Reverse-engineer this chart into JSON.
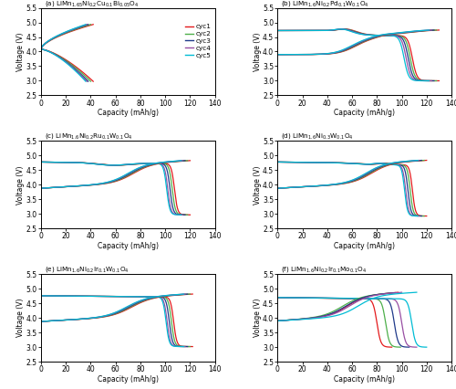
{
  "panels": [
    {
      "label": "(a)",
      "title_parts": [
        "(a) LiMn",
        "1.65",
        "Ni",
        "0.2",
        "Cu",
        "0.1",
        "Bi",
        "0.05",
        "O",
        "4"
      ],
      "title_text": "(a) LiMn$_{1.65}$Ni$_{0.2}$Cu$_{0.1}$Bi$_{0.05}$O$_4$",
      "xlim": [
        0,
        140
      ],
      "ylim": [
        2.5,
        5.5
      ],
      "yticks": [
        2.5,
        3.0,
        3.5,
        4.0,
        4.5,
        5.0,
        5.5
      ],
      "xticks": [
        0,
        20,
        40,
        60,
        80,
        100,
        120,
        140
      ],
      "show_legend": true,
      "curve_type": "a"
    },
    {
      "label": "(b)",
      "title_text": "(b) LiMn$_{1.6}$Ni$_{0.2}$Pd$_{0.1}$W$_{0.1}$O$_4$",
      "xlim": [
        0,
        140
      ],
      "ylim": [
        2.5,
        5.5
      ],
      "yticks": [
        2.5,
        3.0,
        3.5,
        4.0,
        4.5,
        5.0,
        5.5
      ],
      "xticks": [
        0,
        20,
        40,
        60,
        80,
        100,
        120,
        140
      ],
      "show_legend": false,
      "curve_type": "b"
    },
    {
      "label": "(c)",
      "title_text": "(c) LiMn$_{1.6}$Ni$_{0.2}$Ru$_{0.1}$W$_{0.1}$O$_4$",
      "xlim": [
        0,
        140
      ],
      "ylim": [
        2.5,
        5.5
      ],
      "yticks": [
        2.5,
        3.0,
        3.5,
        4.0,
        4.5,
        5.0,
        5.5
      ],
      "xticks": [
        0,
        20,
        40,
        60,
        80,
        100,
        120,
        140
      ],
      "show_legend": false,
      "curve_type": "c"
    },
    {
      "label": "(d)",
      "title_text": "(d) LiMn$_{1.6}$Ni$_{0.3}$W$_{0.1}$O$_4$",
      "xlim": [
        0,
        140
      ],
      "ylim": [
        2.5,
        5.5
      ],
      "yticks": [
        2.5,
        3.0,
        3.5,
        4.0,
        4.5,
        5.0,
        5.5
      ],
      "xticks": [
        0,
        20,
        40,
        60,
        80,
        100,
        120,
        140
      ],
      "show_legend": false,
      "curve_type": "d"
    },
    {
      "label": "(e)",
      "title_text": "(e) LiMn$_{1.6}$Ni$_{0.2}$Ir$_{0.1}$W$_{0.1}$O$_4$",
      "xlim": [
        0,
        140
      ],
      "ylim": [
        2.5,
        5.5
      ],
      "yticks": [
        2.5,
        3.0,
        3.5,
        4.0,
        4.5,
        5.0,
        5.5
      ],
      "xticks": [
        0,
        20,
        40,
        60,
        80,
        100,
        120,
        140
      ],
      "show_legend": false,
      "curve_type": "e"
    },
    {
      "label": "(f)",
      "title_text": "(f) LiMn$_{1.6}$Ni$_{0.2}$Ir$_{0.1}$Mo$_{0.1}$O$_4$",
      "xlim": [
        0,
        140
      ],
      "ylim": [
        2.5,
        5.5
      ],
      "yticks": [
        2.5,
        3.0,
        3.5,
        4.0,
        4.5,
        5.0,
        5.5
      ],
      "xticks": [
        0,
        20,
        40,
        60,
        80,
        100,
        120,
        140
      ],
      "show_legend": false,
      "curve_type": "f"
    }
  ],
  "cycle_colors": [
    "#e41a1c",
    "#4daf4a",
    "#1f3a8a",
    "#984ea3",
    "#00bcd4"
  ],
  "cycle_labels": [
    "cyc1",
    "cyc2",
    "cyc3",
    "cyc4",
    "cyc5"
  ],
  "xlabel": "Capacity (mAh/g)",
  "ylabel": "Voltage (V)",
  "figure_bgcolor": "#ffffff"
}
